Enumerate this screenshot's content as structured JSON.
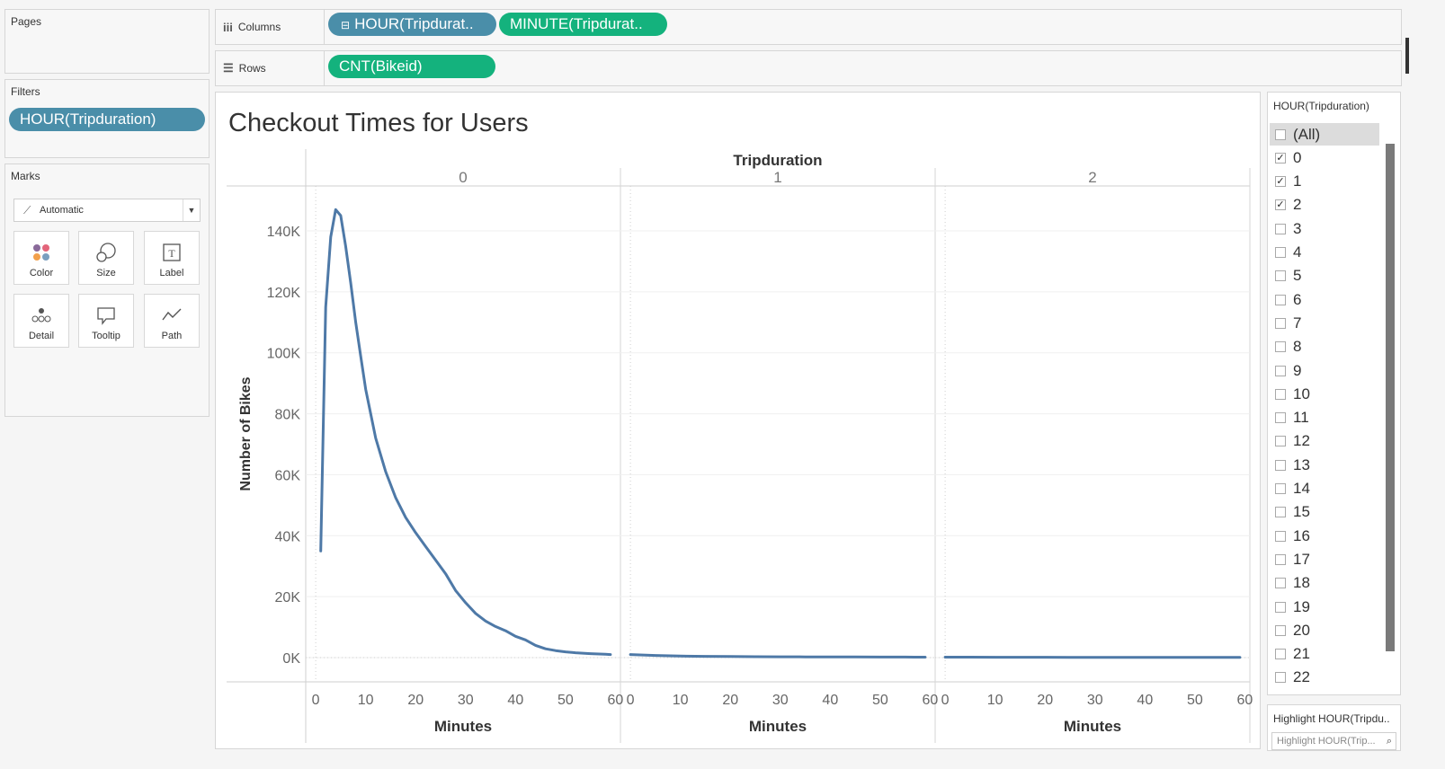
{
  "left_panel": {
    "pages_title": "Pages",
    "filters_title": "Filters",
    "filter_pill": "HOUR(Tripduration)",
    "marks_title": "Marks",
    "mark_type": "Automatic",
    "mark_buttons": [
      "Color",
      "Size",
      "Label",
      "Detail",
      "Tooltip",
      "Path"
    ]
  },
  "shelves": {
    "columns_label": "Columns",
    "rows_label": "Rows",
    "columns_pills": [
      "HOUR(Tripdurat..",
      "MINUTE(Tripdurat.."
    ],
    "rows_pills": [
      "CNT(Bikeid)"
    ]
  },
  "colors": {
    "blue_pill": "#4a8ea9",
    "green_pill": "#14b27d",
    "line": "#4e79a7"
  },
  "chart_data": {
    "type": "line",
    "title": "Checkout Times for Users",
    "column_header": "Tripduration",
    "ylabel": "Number of Bikes",
    "xlabel": "Minutes",
    "ylim": [
      0,
      150000
    ],
    "y_ticks": [
      "0K",
      "20K",
      "40K",
      "60K",
      "80K",
      "100K",
      "120K",
      "140K"
    ],
    "x_ticks": [
      "0",
      "10",
      "20",
      "30",
      "40",
      "50",
      "60"
    ],
    "xlim": [
      -2,
      61
    ],
    "panels": [
      {
        "name": "0",
        "x": [
          1,
          2,
          3,
          4,
          5,
          6,
          7,
          8,
          9,
          10,
          12,
          14,
          16,
          18,
          20,
          22,
          24,
          26,
          28,
          30,
          32,
          34,
          36,
          38,
          40,
          42,
          44,
          46,
          48,
          50,
          52,
          55,
          58,
          59
        ],
        "y": [
          35000,
          115000,
          138000,
          147000,
          145000,
          135000,
          123000,
          110000,
          99000,
          88000,
          72000,
          61000,
          52500,
          46000,
          41000,
          36500,
          32000,
          27500,
          22000,
          18000,
          14500,
          12000,
          10200,
          8800,
          7000,
          5800,
          4000,
          2900,
          2300,
          1900,
          1600,
          1300,
          1100,
          1000
        ]
      },
      {
        "name": "1",
        "x": [
          0,
          5,
          10,
          15,
          20,
          25,
          30,
          35,
          40,
          45,
          50,
          55,
          59
        ],
        "y": [
          1000,
          700,
          500,
          400,
          350,
          300,
          270,
          250,
          230,
          210,
          190,
          170,
          150
        ]
      },
      {
        "name": "2",
        "x": [
          0,
          5,
          10,
          15,
          20,
          25,
          30,
          35,
          40,
          45,
          50,
          55,
          59
        ],
        "y": [
          150,
          140,
          130,
          120,
          110,
          100,
          95,
          90,
          85,
          80,
          75,
          70,
          65
        ]
      }
    ]
  },
  "filter_card": {
    "title": "HOUR(Tripduration)",
    "items": [
      {
        "label": "(All)",
        "checked": false
      },
      {
        "label": "0",
        "checked": true
      },
      {
        "label": "1",
        "checked": true
      },
      {
        "label": "2",
        "checked": true
      },
      {
        "label": "3",
        "checked": false
      },
      {
        "label": "4",
        "checked": false
      },
      {
        "label": "5",
        "checked": false
      },
      {
        "label": "6",
        "checked": false
      },
      {
        "label": "7",
        "checked": false
      },
      {
        "label": "8",
        "checked": false
      },
      {
        "label": "9",
        "checked": false
      },
      {
        "label": "10",
        "checked": false
      },
      {
        "label": "11",
        "checked": false
      },
      {
        "label": "12",
        "checked": false
      },
      {
        "label": "13",
        "checked": false
      },
      {
        "label": "14",
        "checked": false
      },
      {
        "label": "15",
        "checked": false
      },
      {
        "label": "16",
        "checked": false
      },
      {
        "label": "17",
        "checked": false
      },
      {
        "label": "18",
        "checked": false
      },
      {
        "label": "19",
        "checked": false
      },
      {
        "label": "20",
        "checked": false
      },
      {
        "label": "21",
        "checked": false
      },
      {
        "label": "22",
        "checked": false
      }
    ]
  },
  "highlight_card": {
    "title": "Highlight HOUR(Tripdu..",
    "placeholder": "Highlight HOUR(Trip..."
  }
}
